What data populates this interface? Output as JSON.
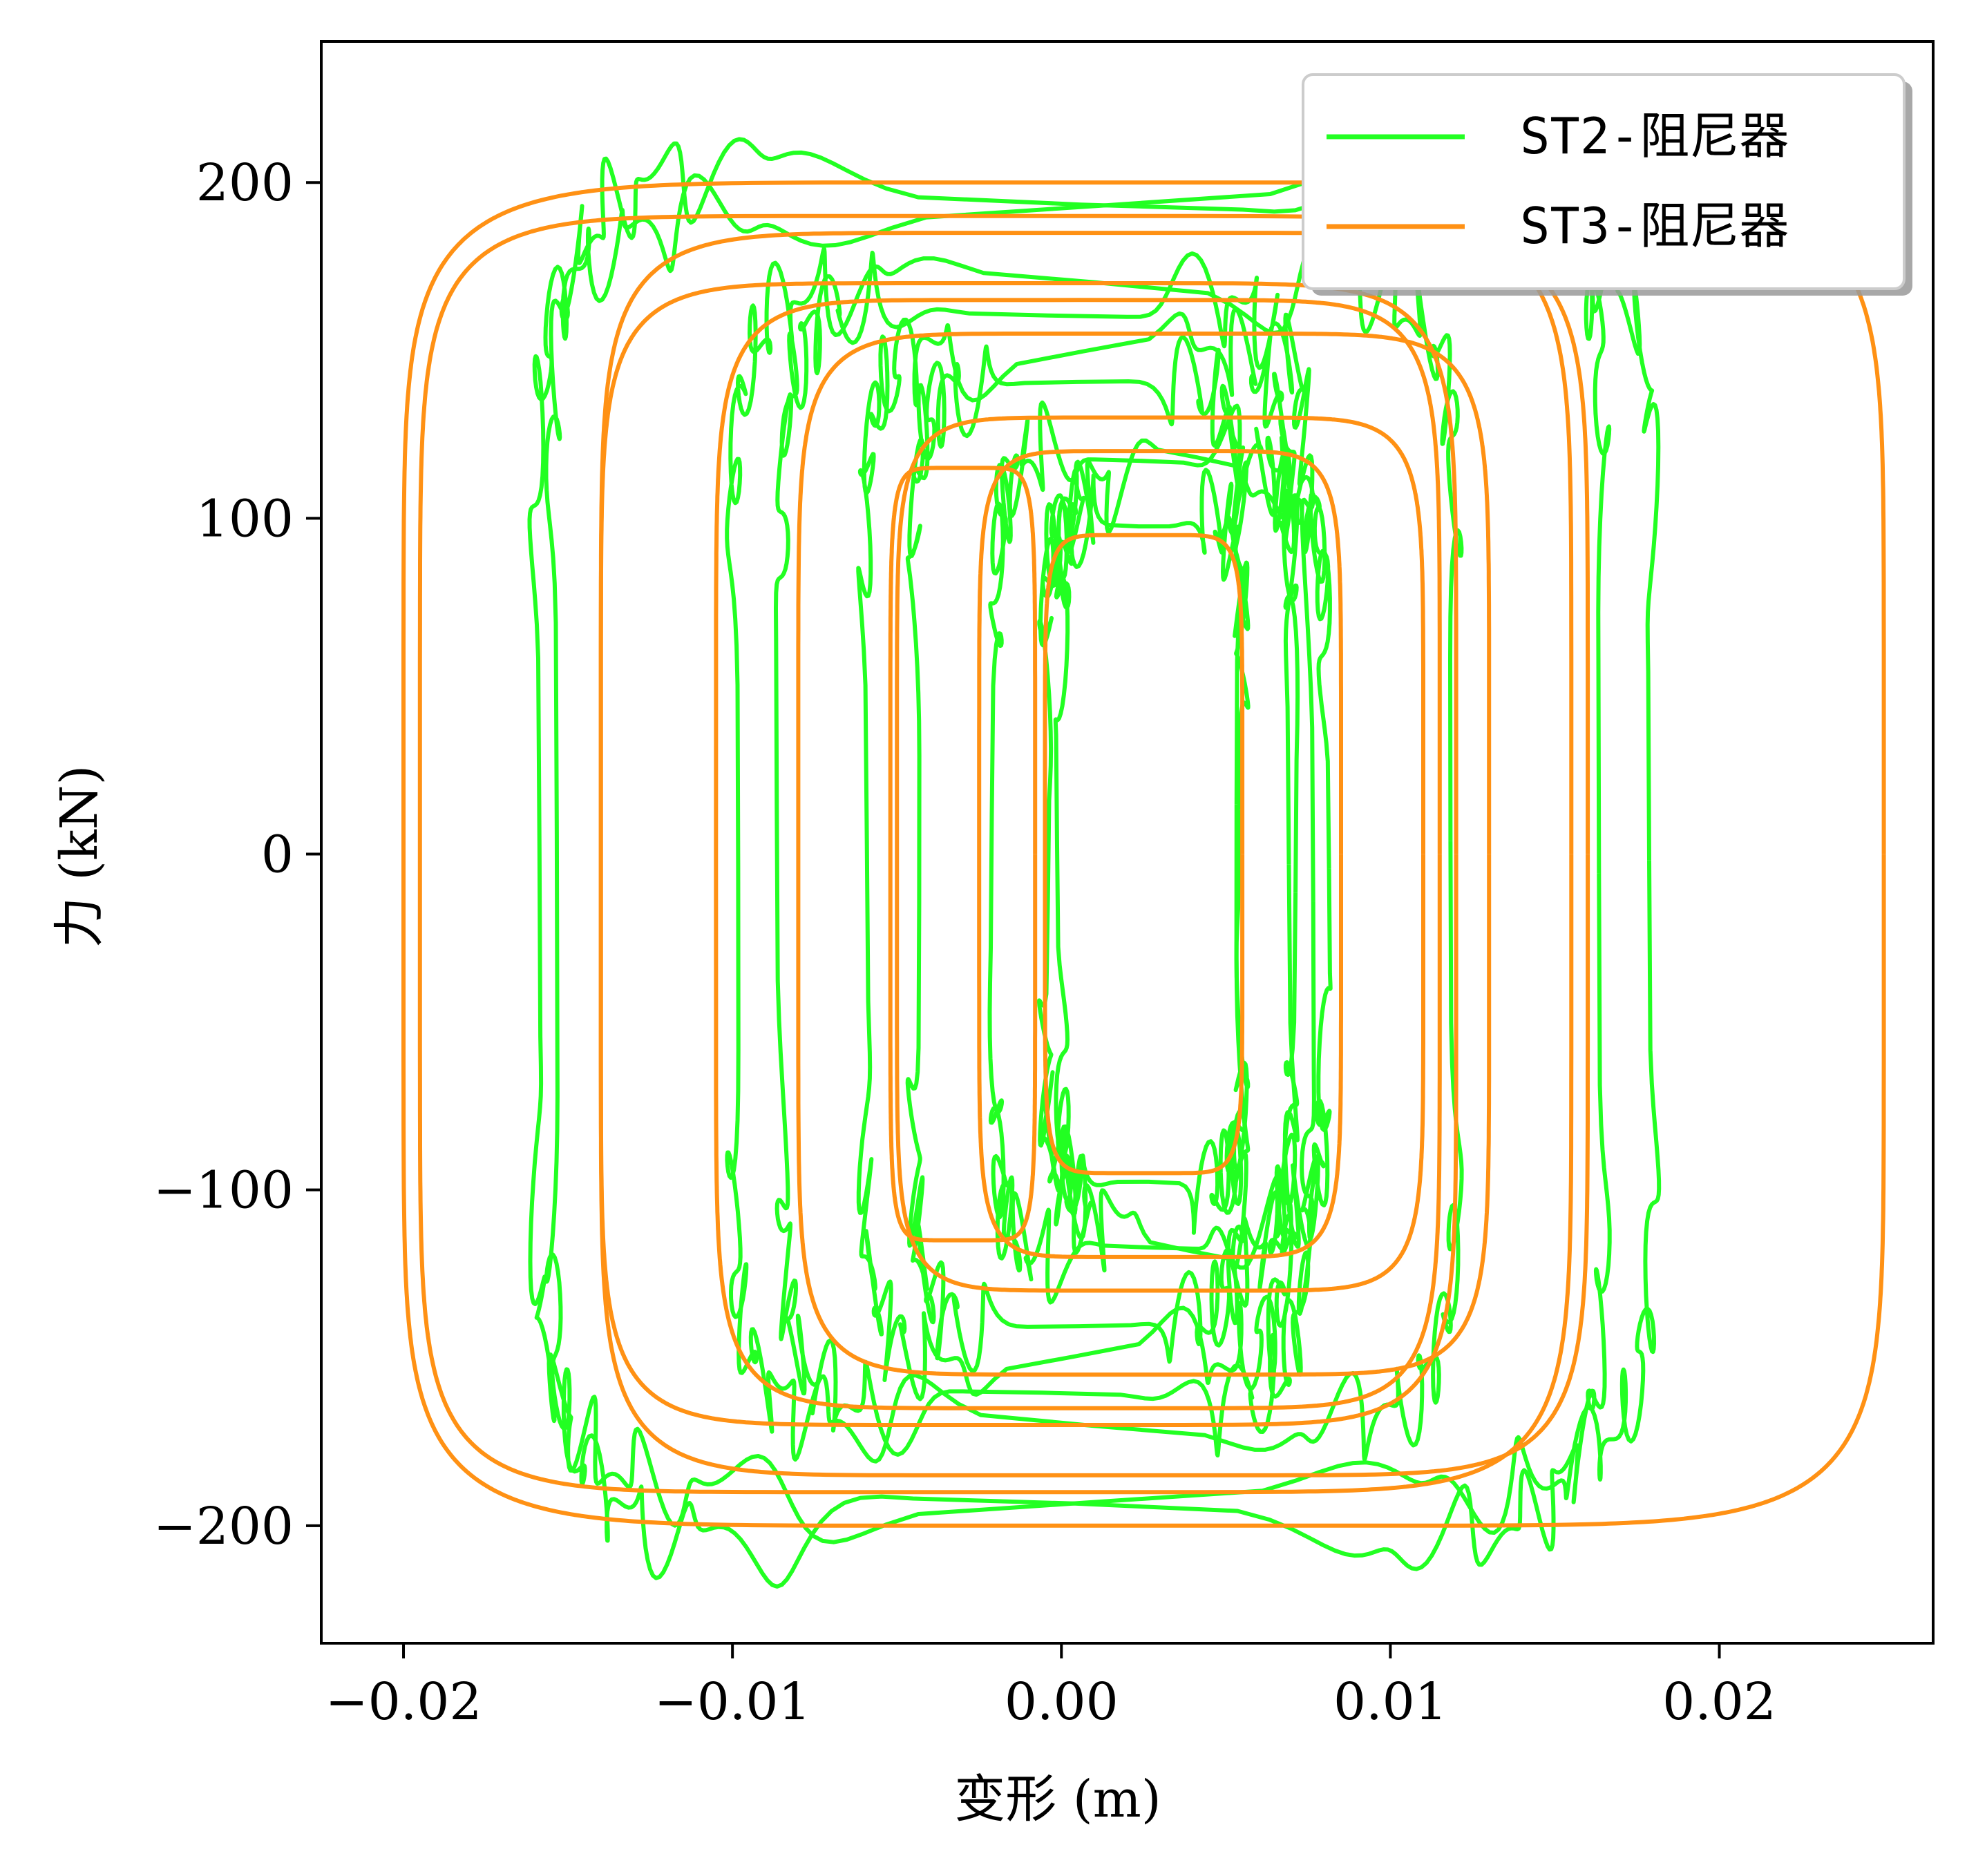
{
  "chart_data": {
    "type": "line",
    "xlabel": "变形 (m)",
    "ylabel": "力 (kN)",
    "xlim": [
      -0.0225,
      0.0265
    ],
    "ylim": [
      -235,
      242
    ],
    "xticks": [
      -0.02,
      -0.01,
      0.0,
      0.01,
      0.02
    ],
    "xtick_labels": [
      "−0.02",
      "−0.01",
      "0.00",
      "0.01",
      "0.02"
    ],
    "yticks": [
      -200,
      -100,
      0,
      100,
      200
    ],
    "ytick_labels": [
      "−200",
      "−100",
      "0",
      "100",
      "200"
    ],
    "grid": false,
    "legend_position": "top-right",
    "series": [
      {
        "name": "ST2-阻尼器",
        "color": "#22ff22",
        "loops": [
          {
            "cx": 0.001,
            "hw": 0.017,
            "hh": 190
          },
          {
            "cx": 0.0005,
            "hw": 0.016,
            "hh": 205
          },
          {
            "cx": 0.001,
            "hw": 0.011,
            "hh": 170
          },
          {
            "cx": -0.0005,
            "hw": 0.008,
            "hh": 165
          },
          {
            "cx": 0.0005,
            "hw": 0.0065,
            "hh": 150
          },
          {
            "cx": 0.0005,
            "hw": 0.005,
            "hh": 140
          },
          {
            "cx": 0.0025,
            "hw": 0.0045,
            "hh": 120
          },
          {
            "cx": 0.004,
            "hw": 0.004,
            "hh": 110
          },
          {
            "cx": 0.0025,
            "hw": 0.003,
            "hh": 100
          }
        ]
      },
      {
        "name": "ST3-阻尼器",
        "color": "#ff9114",
        "loops": [
          {
            "cx": 0.0025,
            "hw": 0.0225,
            "hh": 200
          },
          {
            "cx": -0.002,
            "hw": 0.0175,
            "hh": 190
          },
          {
            "cx": 0.001,
            "hw": 0.015,
            "hh": 185
          },
          {
            "cx": -0.001,
            "hw": 0.013,
            "hh": 170
          },
          {
            "cx": 0.0005,
            "hw": 0.011,
            "hh": 165
          },
          {
            "cx": 0.0025,
            "hw": 0.0105,
            "hh": 155
          },
          {
            "cx": 0.003,
            "hw": 0.008,
            "hh": 130
          },
          {
            "cx": 0.003,
            "hw": 0.0055,
            "hh": 120
          },
          {
            "cx": -0.003,
            "hw": 0.0022,
            "hh": 115
          },
          {
            "cx": 0.0025,
            "hw": 0.003,
            "hh": 95
          }
        ]
      }
    ]
  }
}
